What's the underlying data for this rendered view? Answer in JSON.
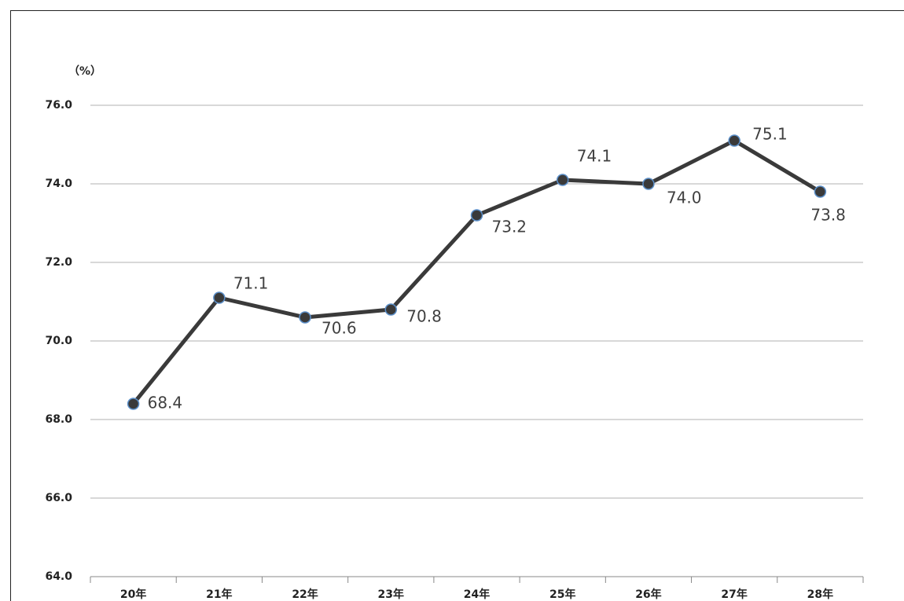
{
  "chart_data": {
    "type": "line",
    "ylabel": "（%）",
    "categories": [
      "20年",
      "21年",
      "22年",
      "23年",
      "24年",
      "25年",
      "26年",
      "27年",
      "28年"
    ],
    "series": [
      {
        "color": "#3a3a3a",
        "values": [
          68.4,
          71.1,
          70.6,
          70.8,
          73.2,
          74.1,
          74.0,
          75.1,
          73.8
        ],
        "value_labels": [
          "68.4",
          "71.1",
          "70.6",
          "70.8",
          "73.2",
          "74.1",
          "74.0",
          "75.1",
          "73.8"
        ]
      }
    ],
    "ylim": [
      64,
      76
    ],
    "yticks": [
      {
        "value": 64,
        "label": "64.0"
      },
      {
        "value": 66,
        "label": "66.0"
      },
      {
        "value": 68,
        "label": "68.0"
      },
      {
        "value": 70,
        "label": "70.0"
      },
      {
        "value": 72,
        "label": "72.0"
      },
      {
        "value": 74,
        "label": "74.0"
      },
      {
        "value": 76,
        "label": "76.0"
      }
    ],
    "grid": true
  }
}
